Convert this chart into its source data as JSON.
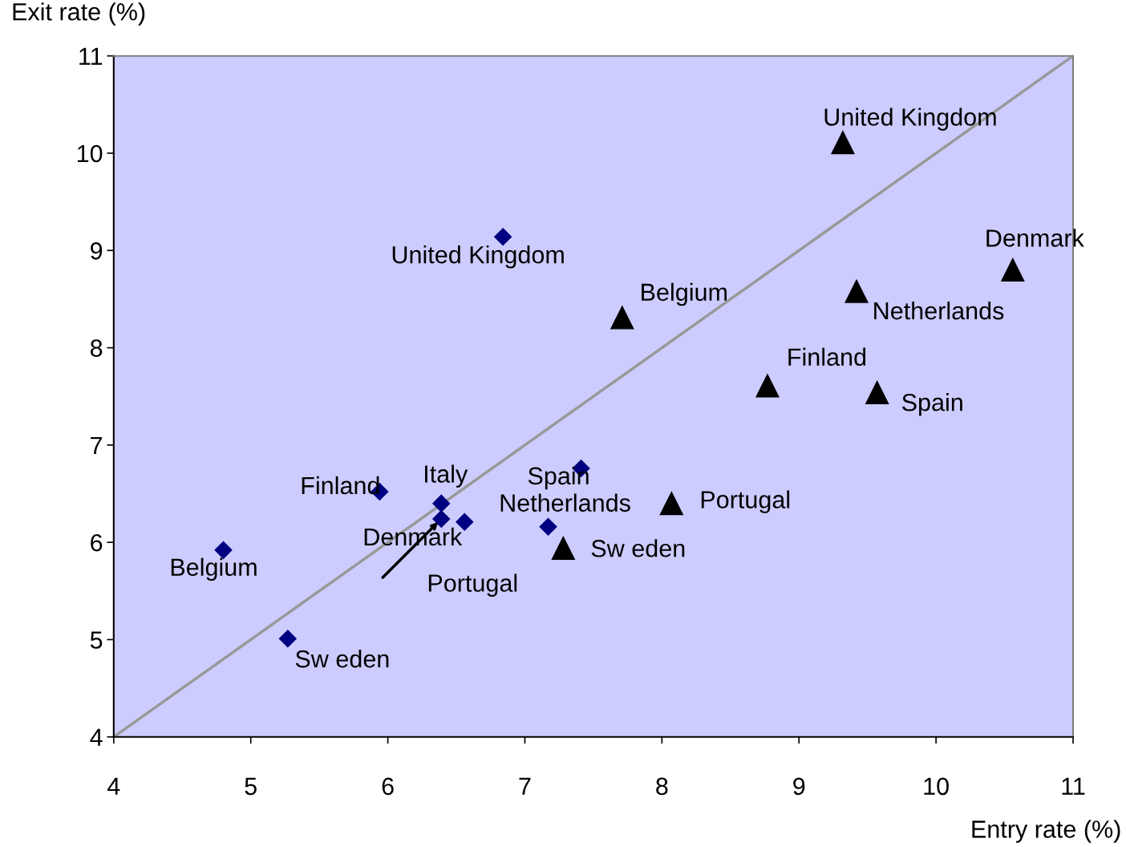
{
  "chart_data": {
    "type": "scatter",
    "xlabel": "Entry rate (%)",
    "ylabel": "Exit rate (%)",
    "xlim": [
      4,
      11
    ],
    "ylim": [
      4,
      11
    ],
    "xticks": [
      4,
      5,
      6,
      7,
      8,
      9,
      10,
      11
    ],
    "yticks": [
      4,
      5,
      6,
      7,
      8,
      9,
      10,
      11
    ],
    "grid": false,
    "legend": false,
    "series": [
      {
        "type": "line",
        "color": "#999999",
        "x": [
          4,
          11
        ],
        "values": [
          4,
          11
        ],
        "marker": "none"
      },
      {
        "color": "#000080",
        "marker": "diamond",
        "x": [
          6.84,
          4.8,
          5.27,
          5.94,
          6.39,
          6.39,
          6.56,
          7.17,
          7.41
        ],
        "values": [
          9.14,
          5.92,
          5.01,
          6.52,
          6.4,
          6.24,
          6.21,
          6.16,
          6.76
        ],
        "value_labels": [
          "United Kingdom",
          "Belgium",
          "Sw eden",
          "Finland",
          "Italy",
          "Denmark",
          "Portugal",
          "Netherlands",
          "Spain"
        ]
      },
      {
        "color": "#000000",
        "marker": "triangle",
        "x": [
          9.32,
          10.56,
          9.42,
          7.71,
          8.77,
          9.57,
          8.07,
          7.28
        ],
        "values": [
          10.11,
          8.8,
          8.58,
          8.31,
          7.61,
          7.54,
          6.4,
          5.94
        ],
        "value_labels": [
          "United Kingdom",
          "Denmark",
          "Netherlands",
          "Belgium",
          "Finland",
          "Spain",
          "Portugal",
          "Sw eden"
        ]
      }
    ]
  }
}
